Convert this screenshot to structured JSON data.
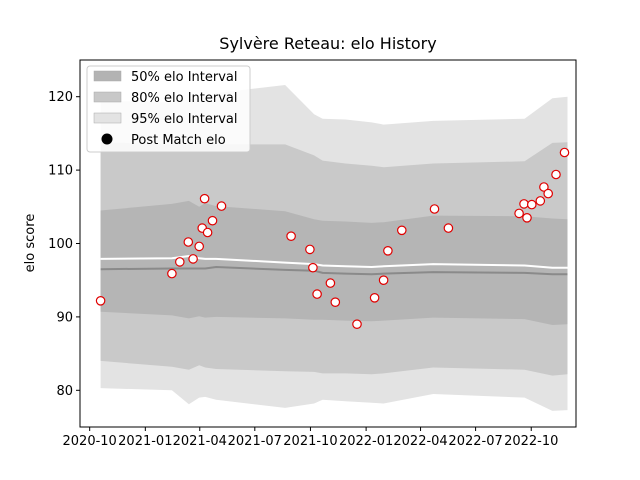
{
  "chart_data": {
    "type": "line",
    "title": "Sylvère Reteau: elo History",
    "xlabel": "",
    "ylabel": "elo score",
    "xlim": [
      "2020-09-15",
      "2022-12-14"
    ],
    "ylim": [
      75,
      125
    ],
    "x_ticks": [
      "2020-10",
      "2021-01",
      "2021-04",
      "2021-07",
      "2021-10",
      "2022-01",
      "2022-04",
      "2022-07",
      "2022-10"
    ],
    "y_ticks": [
      80,
      90,
      100,
      110,
      120
    ],
    "grid": false,
    "legend_position": "upper-left",
    "legend": [
      {
        "label": "50% elo Interval",
        "color": "#b3b3b3",
        "kind": "patch"
      },
      {
        "label": "80% elo Interval",
        "color": "#c8c8c8",
        "kind": "patch"
      },
      {
        "label": "95% elo Interval",
        "color": "#e3e3e3",
        "kind": "patch"
      },
      {
        "label": "Post Match elo",
        "color": "#000000",
        "kind": "marker"
      }
    ],
    "colors": {
      "band95": "#e3e3e3",
      "band80": "#c9c9c9",
      "band50": "#b5b5b5",
      "median_line": "#8a8a8a",
      "mean_line": "#ffffff",
      "marker_edge": "#e00000",
      "marker_face": "#ffffff"
    },
    "bands": {
      "x": [
        "2020-10-19",
        "2021-02-14",
        "2021-03-14",
        "2021-03-31",
        "2021-04-10",
        "2021-04-28",
        "2021-08-20",
        "2021-10-07",
        "2021-10-21",
        "2021-11-28",
        "2022-01-10",
        "2022-01-30",
        "2022-04-22",
        "2022-09-20",
        "2022-11-05",
        "2022-11-30"
      ],
      "p95_upper": [
        119.5,
        119.2,
        119.6,
        119.9,
        120.1,
        120.5,
        121.6,
        117.6,
        117.0,
        116.9,
        116.5,
        116.2,
        116.7,
        117.0,
        119.8,
        120.0
      ],
      "p80_upper": [
        113.8,
        113.5,
        113.7,
        113.9,
        114.0,
        113.5,
        113.5,
        112.0,
        111.3,
        110.9,
        110.6,
        110.4,
        110.9,
        111.2,
        113.7,
        113.8
      ],
      "p50_upper": [
        104.5,
        105.4,
        105.8,
        105.0,
        105.5,
        105.1,
        104.4,
        103.3,
        103.1,
        103.0,
        102.8,
        102.9,
        103.8,
        103.7,
        103.4,
        103.3
      ],
      "median": [
        96.5,
        96.6,
        96.6,
        96.6,
        96.6,
        96.8,
        96.4,
        96.3,
        96.0,
        95.9,
        95.8,
        95.9,
        96.1,
        96.0,
        95.8,
        95.8
      ],
      "mean": [
        97.9,
        98.0,
        98.3,
        98.0,
        97.9,
        97.9,
        97.4,
        97.2,
        97.0,
        96.9,
        96.8,
        96.9,
        97.2,
        97.0,
        96.7,
        96.7
      ],
      "p50_lower": [
        90.7,
        90.2,
        89.8,
        90.1,
        89.9,
        90.0,
        89.8,
        89.6,
        89.6,
        89.5,
        89.4,
        89.5,
        89.9,
        89.7,
        88.9,
        89.0
      ],
      "p80_lower": [
        84.0,
        83.2,
        82.8,
        83.4,
        83.1,
        82.9,
        82.6,
        82.5,
        82.3,
        82.3,
        82.2,
        82.3,
        83.1,
        82.8,
        82.0,
        82.2
      ],
      "p95_lower": [
        80.3,
        80.0,
        78.1,
        79.0,
        79.1,
        78.7,
        77.6,
        78.2,
        78.7,
        78.5,
        78.3,
        78.2,
        79.5,
        79.0,
        77.2,
        77.3
      ]
    },
    "points": [
      {
        "x": "2020-10-19",
        "y": 92.2
      },
      {
        "x": "2021-02-14",
        "y": 95.9
      },
      {
        "x": "2021-02-27",
        "y": 97.5
      },
      {
        "x": "2021-03-13",
        "y": 100.2
      },
      {
        "x": "2021-03-21",
        "y": 97.9
      },
      {
        "x": "2021-03-31",
        "y": 99.6
      },
      {
        "x": "2021-04-05",
        "y": 102.1
      },
      {
        "x": "2021-04-09",
        "y": 106.1
      },
      {
        "x": "2021-04-14",
        "y": 101.5
      },
      {
        "x": "2021-04-22",
        "y": 103.1
      },
      {
        "x": "2021-05-07",
        "y": 105.1
      },
      {
        "x": "2021-08-30",
        "y": 101.0
      },
      {
        "x": "2021-09-30",
        "y": 99.2
      },
      {
        "x": "2021-10-05",
        "y": 96.7
      },
      {
        "x": "2021-10-12",
        "y": 93.1
      },
      {
        "x": "2021-11-03",
        "y": 94.6
      },
      {
        "x": "2021-11-11",
        "y": 92.0
      },
      {
        "x": "2021-12-17",
        "y": 89.0
      },
      {
        "x": "2022-01-15",
        "y": 92.6
      },
      {
        "x": "2022-01-30",
        "y": 95.0
      },
      {
        "x": "2022-02-06",
        "y": 99.0
      },
      {
        "x": "2022-03-01",
        "y": 101.8
      },
      {
        "x": "2022-04-24",
        "y": 104.7
      },
      {
        "x": "2022-05-17",
        "y": 102.1
      },
      {
        "x": "2022-09-11",
        "y": 104.1
      },
      {
        "x": "2022-09-19",
        "y": 105.4
      },
      {
        "x": "2022-09-24",
        "y": 103.5
      },
      {
        "x": "2022-10-02",
        "y": 105.3
      },
      {
        "x": "2022-10-16",
        "y": 105.8
      },
      {
        "x": "2022-10-22",
        "y": 107.7
      },
      {
        "x": "2022-10-29",
        "y": 106.8
      },
      {
        "x": "2022-11-11",
        "y": 109.4
      },
      {
        "x": "2022-11-25",
        "y": 112.4
      }
    ]
  }
}
